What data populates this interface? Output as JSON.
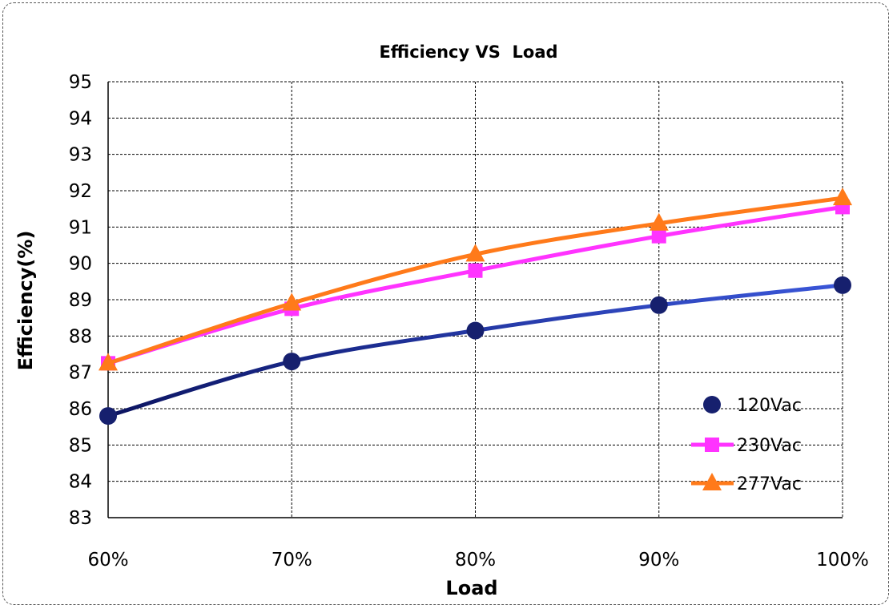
{
  "chart_data": {
    "type": "line",
    "title": "Efficiency VS  Load",
    "xlabel": "Load",
    "ylabel": "Efficiency(%)",
    "categories": [
      "60%",
      "70%",
      "80%",
      "90%",
      "100%"
    ],
    "ylim": [
      83,
      95
    ],
    "yticks": [
      83,
      84,
      85,
      86,
      87,
      88,
      89,
      90,
      91,
      92,
      93,
      94,
      95
    ],
    "grid": true,
    "legend_position": "bottom-right",
    "series": [
      {
        "name": "120Vac",
        "color": "#1a2a8c",
        "marker": "circle",
        "values": [
          85.8,
          87.3,
          88.15,
          88.85,
          89.4
        ]
      },
      {
        "name": "230Vac",
        "color": "#ff33ff",
        "marker": "square",
        "values": [
          87.25,
          88.75,
          89.8,
          90.75,
          91.55
        ]
      },
      {
        "name": "277Vac",
        "color": "#ff7a1a",
        "marker": "triangle",
        "values": [
          87.25,
          88.9,
          90.25,
          91.1,
          91.8
        ]
      }
    ]
  }
}
